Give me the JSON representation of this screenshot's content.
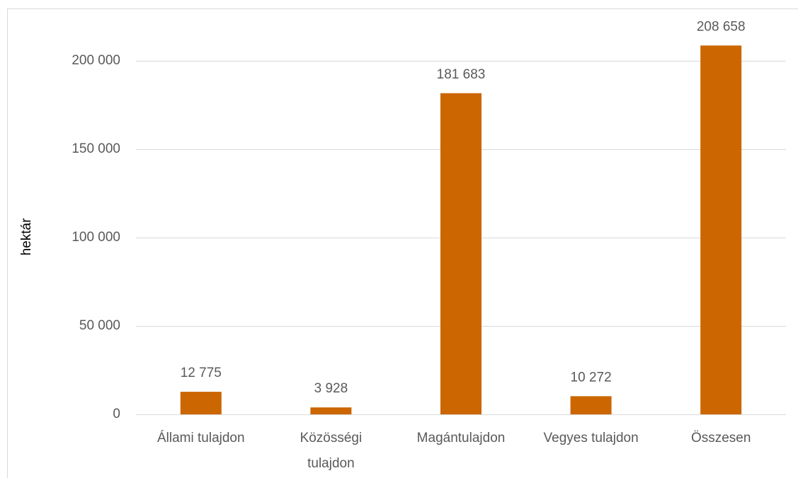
{
  "chart_data": {
    "type": "bar",
    "ylabel": "hektár",
    "categories": [
      "Állami tulajdon",
      "Közösségi tulajdon",
      "Magántulajdon",
      "Vegyes tulajdon",
      "Összesen"
    ],
    "values": [
      12775,
      3928,
      181683,
      10272,
      208658
    ],
    "value_labels": [
      "12 775",
      "3 928",
      "181 683",
      "10 272",
      "208 658"
    ],
    "color": "#cc6600",
    "ylim": [
      0,
      220000
    ],
    "yticks": [
      0,
      {
        "value": 50000,
        "label": "50 000"
      },
      {
        "value": 100000,
        "label": "100 000"
      },
      {
        "value": 150000,
        "label": "150 000"
      },
      {
        "value": 200000,
        "label": "200 000"
      }
    ],
    "grid": true
  }
}
